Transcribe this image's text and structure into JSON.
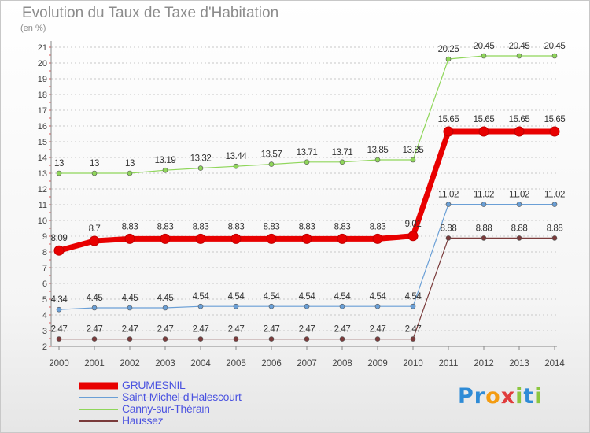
{
  "title": "Evolution du Taux de Taxe d'Habitation",
  "unit": "(en %)",
  "logo": {
    "text": "Proxiti",
    "colors": [
      "#2e8bd6",
      "#2e8bd6",
      "#f39c12",
      "#e03c3c",
      "#8cc63f",
      "#2e8bd6",
      "#8cc63f"
    ]
  },
  "chart_data": {
    "type": "line",
    "title": "Evolution du Taux de Taxe d'Habitation",
    "ylabel": "(en %)",
    "xlabel": "",
    "ylim": [
      2,
      21
    ],
    "x": [
      "2000",
      "2001",
      "2002",
      "2003",
      "2004",
      "2005",
      "2006",
      "2007",
      "2008",
      "2009",
      "2010",
      "2011",
      "2012",
      "2013",
      "2014"
    ],
    "yticks": [
      "2",
      "3",
      "4",
      "5",
      "6",
      "7",
      "8",
      "9",
      "10",
      "11",
      "12",
      "13",
      "14",
      "15",
      "16",
      "17",
      "18",
      "19",
      "20",
      "21"
    ],
    "grid": "horizontal dotted",
    "legend": "bottom-left",
    "series": [
      {
        "name": "GRUMESNIL",
        "color": "#e80000",
        "values": [
          8.09,
          8.7,
          8.83,
          8.83,
          8.83,
          8.83,
          8.83,
          8.83,
          8.83,
          8.83,
          9.01,
          15.65,
          15.65,
          15.65,
          15.65
        ],
        "labels": [
          "8.09",
          "8.7",
          "8.83",
          "8.83",
          "8.83",
          "8.83",
          "8.83",
          "8.83",
          "8.83",
          "8.83",
          "9.01",
          "15.65",
          "15.65",
          "15.65",
          "15.65"
        ]
      },
      {
        "name": "Saint-Michel-d'Halescourt",
        "color": "#6a9fd6",
        "values": [
          4.34,
          4.45,
          4.45,
          4.45,
          4.54,
          4.54,
          4.54,
          4.54,
          4.54,
          4.54,
          4.54,
          11.02,
          11.02,
          11.02,
          11.02
        ],
        "labels": [
          "4.34",
          "4.45",
          "4.45",
          "4.45",
          "4.54",
          "4.54",
          "4.54",
          "4.54",
          "4.54",
          "4.54",
          "4.54",
          "11.02",
          "11.02",
          "11.02",
          "11.02"
        ]
      },
      {
        "name": "Canny-sur-Thérain",
        "color": "#8fd65a",
        "values": [
          13,
          13,
          13,
          13.19,
          13.32,
          13.44,
          13.57,
          13.71,
          13.71,
          13.85,
          13.85,
          20.25,
          20.45,
          20.45,
          20.45
        ],
        "labels": [
          "13",
          "13",
          "13",
          "13.19",
          "13.32",
          "13.44",
          "13.57",
          "13.71",
          "13.71",
          "13.85",
          "13.85",
          "20.25",
          "20.45",
          "20.45",
          "20.45"
        ]
      },
      {
        "name": "Haussez",
        "color": "#7a3b3b",
        "values": [
          2.47,
          2.47,
          2.47,
          2.47,
          2.47,
          2.47,
          2.47,
          2.47,
          2.47,
          2.47,
          2.47,
          8.88,
          8.88,
          8.88,
          8.88
        ],
        "labels": [
          "2.47",
          "2.47",
          "2.47",
          "2.47",
          "2.47",
          "2.47",
          "2.47",
          "2.47",
          "2.47",
          "2.47",
          "2.47",
          "8.88",
          "8.88",
          "8.88",
          "8.88"
        ]
      }
    ]
  }
}
